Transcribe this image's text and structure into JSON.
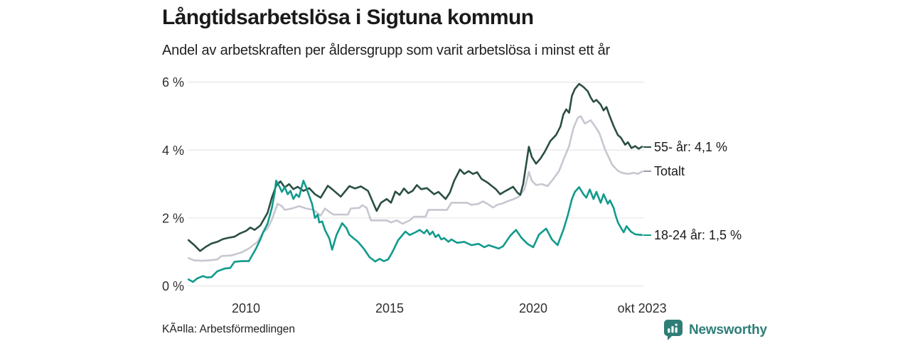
{
  "header": {
    "title": "Långtidsarbetslösa i Sigtuna kommun",
    "subtitle": "Andel av arbetskraften per åldersgrupp som varit arbetslösa i minst ett år"
  },
  "footer": {
    "source": "KÃ¤lla: Arbetsförmedlingen",
    "brand": "Newsworthy",
    "brand_color": "#2e7e77"
  },
  "chart_data": {
    "type": "line",
    "title": "Långtidsarbetslösa i Sigtuna kommun",
    "grid": "horizontal",
    "legend_position": "right-end-labels",
    "x_axis": {
      "range": [
        2008.0,
        2023.83
      ],
      "ticks": [
        {
          "t": 2010,
          "label": "2010"
        },
        {
          "t": 2015,
          "label": "2015"
        },
        {
          "t": 2020,
          "label": "2020"
        },
        {
          "t": 2023.79,
          "label": "okt 2023"
        }
      ]
    },
    "y_axis": {
      "range": [
        0,
        6.3
      ],
      "unit": "%",
      "ticks": [
        {
          "v": 0,
          "label": "0 %"
        },
        {
          "v": 2,
          "label": "2 %"
        },
        {
          "v": 4,
          "label": "4 %"
        },
        {
          "v": 6,
          "label": "6 %"
        }
      ],
      "gridline_color": "#e8e8e8"
    },
    "series": [
      {
        "name": "55- år",
        "end_label": "55- år: 4,1 %",
        "end_value": 4.1,
        "color": "#2a4f42",
        "z": 1,
        "points": [
          [
            2008.0,
            1.35
          ],
          [
            2008.2,
            1.2
          ],
          [
            2008.4,
            1.03
          ],
          [
            2008.6,
            1.15
          ],
          [
            2008.8,
            1.25
          ],
          [
            2009.0,
            1.3
          ],
          [
            2009.2,
            1.38
          ],
          [
            2009.4,
            1.42
          ],
          [
            2009.6,
            1.45
          ],
          [
            2009.8,
            1.55
          ],
          [
            2010.0,
            1.62
          ],
          [
            2010.15,
            1.72
          ],
          [
            2010.3,
            1.65
          ],
          [
            2010.5,
            1.78
          ],
          [
            2010.75,
            2.15
          ],
          [
            2010.9,
            2.6
          ],
          [
            2011.05,
            2.95
          ],
          [
            2011.2,
            3.08
          ],
          [
            2011.35,
            2.9
          ],
          [
            2011.5,
            3.0
          ],
          [
            2011.65,
            2.85
          ],
          [
            2011.8,
            2.92
          ],
          [
            2012.0,
            2.8
          ],
          [
            2012.2,
            2.88
          ],
          [
            2012.4,
            2.7
          ],
          [
            2012.6,
            2.6
          ],
          [
            2012.85,
            2.95
          ],
          [
            2013.0,
            2.85
          ],
          [
            2013.3,
            2.63
          ],
          [
            2013.6,
            2.94
          ],
          [
            2013.8,
            2.87
          ],
          [
            2014.0,
            2.93
          ],
          [
            2014.25,
            2.8
          ],
          [
            2014.4,
            2.5
          ],
          [
            2014.55,
            2.21
          ],
          [
            2014.7,
            2.45
          ],
          [
            2014.9,
            2.56
          ],
          [
            2015.05,
            2.45
          ],
          [
            2015.2,
            2.78
          ],
          [
            2015.35,
            2.68
          ],
          [
            2015.5,
            2.87
          ],
          [
            2015.65,
            2.73
          ],
          [
            2015.8,
            2.8
          ],
          [
            2015.95,
            2.97
          ],
          [
            2016.1,
            2.85
          ],
          [
            2016.3,
            2.88
          ],
          [
            2016.55,
            2.7
          ],
          [
            2016.7,
            2.77
          ],
          [
            2016.95,
            2.56
          ],
          [
            2017.1,
            2.75
          ],
          [
            2017.25,
            3.1
          ],
          [
            2017.45,
            3.43
          ],
          [
            2017.6,
            3.3
          ],
          [
            2017.75,
            3.38
          ],
          [
            2017.9,
            3.3
          ],
          [
            2018.05,
            3.35
          ],
          [
            2018.2,
            3.15
          ],
          [
            2018.4,
            3.05
          ],
          [
            2018.55,
            2.95
          ],
          [
            2018.7,
            2.85
          ],
          [
            2018.85,
            2.7
          ],
          [
            2019.0,
            2.78
          ],
          [
            2019.15,
            2.85
          ],
          [
            2019.3,
            2.92
          ],
          [
            2019.45,
            2.75
          ],
          [
            2019.55,
            2.68
          ],
          [
            2019.65,
            3.0
          ],
          [
            2019.75,
            3.55
          ],
          [
            2019.85,
            4.1
          ],
          [
            2019.95,
            3.8
          ],
          [
            2020.1,
            3.6
          ],
          [
            2020.25,
            3.75
          ],
          [
            2020.4,
            3.95
          ],
          [
            2020.6,
            4.27
          ],
          [
            2020.8,
            4.45
          ],
          [
            2020.95,
            4.7
          ],
          [
            2021.05,
            5.05
          ],
          [
            2021.15,
            5.2
          ],
          [
            2021.25,
            5.1
          ],
          [
            2021.35,
            5.6
          ],
          [
            2021.45,
            5.8
          ],
          [
            2021.6,
            5.95
          ],
          [
            2021.75,
            5.86
          ],
          [
            2021.9,
            5.73
          ],
          [
            2022.0,
            5.55
          ],
          [
            2022.1,
            5.42
          ],
          [
            2022.2,
            5.48
          ],
          [
            2022.35,
            5.34
          ],
          [
            2022.45,
            5.17
          ],
          [
            2022.55,
            5.27
          ],
          [
            2022.65,
            5.03
          ],
          [
            2022.8,
            4.71
          ],
          [
            2022.95,
            4.44
          ],
          [
            2023.05,
            4.37
          ],
          [
            2023.2,
            4.16
          ],
          [
            2023.3,
            4.23
          ],
          [
            2023.42,
            4.06
          ],
          [
            2023.55,
            4.12
          ],
          [
            2023.67,
            4.04
          ],
          [
            2023.79,
            4.1
          ]
        ]
      },
      {
        "name": "Totalt",
        "end_label": "Totalt",
        "end_value": 3.37,
        "color": "#c7c7d1",
        "z": 0,
        "points": [
          [
            2008.0,
            0.82
          ],
          [
            2008.2,
            0.75
          ],
          [
            2008.5,
            0.74
          ],
          [
            2008.8,
            0.76
          ],
          [
            2009.0,
            0.78
          ],
          [
            2009.15,
            0.88
          ],
          [
            2009.5,
            0.9
          ],
          [
            2009.85,
            0.99
          ],
          [
            2010.1,
            1.1
          ],
          [
            2010.4,
            1.3
          ],
          [
            2010.6,
            1.58
          ],
          [
            2010.75,
            1.69
          ],
          [
            2010.9,
            1.95
          ],
          [
            2011.1,
            2.42
          ],
          [
            2011.25,
            2.35
          ],
          [
            2011.35,
            2.24
          ],
          [
            2011.6,
            2.28
          ],
          [
            2011.85,
            2.35
          ],
          [
            2012.1,
            2.28
          ],
          [
            2012.35,
            2.24
          ],
          [
            2012.6,
            2.07
          ],
          [
            2012.75,
            2.28
          ],
          [
            2012.9,
            2.18
          ],
          [
            2013.05,
            2.1
          ],
          [
            2013.55,
            2.1
          ],
          [
            2013.65,
            2.28
          ],
          [
            2013.95,
            2.3
          ],
          [
            2014.05,
            2.38
          ],
          [
            2014.2,
            2.3
          ],
          [
            2014.35,
            1.93
          ],
          [
            2014.9,
            1.93
          ],
          [
            2015.05,
            1.87
          ],
          [
            2015.25,
            1.93
          ],
          [
            2015.45,
            1.83
          ],
          [
            2015.7,
            1.93
          ],
          [
            2015.85,
            2.04
          ],
          [
            2016.25,
            2.04
          ],
          [
            2016.35,
            2.24
          ],
          [
            2017.0,
            2.24
          ],
          [
            2017.15,
            2.45
          ],
          [
            2017.7,
            2.45
          ],
          [
            2017.85,
            2.39
          ],
          [
            2018.1,
            2.42
          ],
          [
            2018.25,
            2.49
          ],
          [
            2018.4,
            2.42
          ],
          [
            2018.6,
            2.31
          ],
          [
            2018.75,
            2.39
          ],
          [
            2018.9,
            2.42
          ],
          [
            2019.1,
            2.49
          ],
          [
            2019.3,
            2.55
          ],
          [
            2019.5,
            2.63
          ],
          [
            2019.7,
            2.85
          ],
          [
            2019.85,
            3.36
          ],
          [
            2019.95,
            3.1
          ],
          [
            2020.1,
            2.97
          ],
          [
            2020.3,
            3.0
          ],
          [
            2020.5,
            2.94
          ],
          [
            2020.7,
            3.15
          ],
          [
            2020.9,
            3.39
          ],
          [
            2021.1,
            3.81
          ],
          [
            2021.25,
            4.12
          ],
          [
            2021.4,
            4.65
          ],
          [
            2021.55,
            4.95
          ],
          [
            2021.65,
            5.0
          ],
          [
            2021.8,
            4.78
          ],
          [
            2022.0,
            4.88
          ],
          [
            2022.15,
            4.7
          ],
          [
            2022.3,
            4.51
          ],
          [
            2022.5,
            4.02
          ],
          [
            2022.75,
            3.57
          ],
          [
            2022.95,
            3.39
          ],
          [
            2023.1,
            3.33
          ],
          [
            2023.3,
            3.3
          ],
          [
            2023.5,
            3.33
          ],
          [
            2023.65,
            3.3
          ],
          [
            2023.79,
            3.37
          ]
        ]
      },
      {
        "name": "18-24 år",
        "end_label": "18-24 år: 1,5 %",
        "end_value": 1.5,
        "color": "#109a8c",
        "z": 2,
        "points": [
          [
            2008.0,
            0.19
          ],
          [
            2008.15,
            0.12
          ],
          [
            2008.3,
            0.22
          ],
          [
            2008.5,
            0.29
          ],
          [
            2008.65,
            0.25
          ],
          [
            2008.8,
            0.26
          ],
          [
            2009.0,
            0.43
          ],
          [
            2009.25,
            0.51
          ],
          [
            2009.45,
            0.53
          ],
          [
            2009.6,
            0.71
          ],
          [
            2009.85,
            0.73
          ],
          [
            2010.1,
            0.73
          ],
          [
            2010.35,
            1.1
          ],
          [
            2010.5,
            1.37
          ],
          [
            2010.6,
            1.58
          ],
          [
            2010.75,
            1.83
          ],
          [
            2010.9,
            2.3
          ],
          [
            2011.0,
            2.75
          ],
          [
            2011.05,
            3.1
          ],
          [
            2011.15,
            2.95
          ],
          [
            2011.25,
            2.77
          ],
          [
            2011.35,
            2.91
          ],
          [
            2011.45,
            2.7
          ],
          [
            2011.55,
            2.8
          ],
          [
            2011.65,
            2.56
          ],
          [
            2011.75,
            2.7
          ],
          [
            2011.85,
            2.62
          ],
          [
            2011.95,
            2.95
          ],
          [
            2012.0,
            3.1
          ],
          [
            2012.1,
            2.9
          ],
          [
            2012.2,
            2.65
          ],
          [
            2012.3,
            2.42
          ],
          [
            2012.4,
            2.0
          ],
          [
            2012.5,
            2.1
          ],
          [
            2012.55,
            1.87
          ],
          [
            2012.65,
            1.9
          ],
          [
            2012.75,
            1.65
          ],
          [
            2012.9,
            1.4
          ],
          [
            2013.0,
            1.07
          ],
          [
            2013.15,
            1.5
          ],
          [
            2013.35,
            1.85
          ],
          [
            2013.5,
            1.7
          ],
          [
            2013.6,
            1.51
          ],
          [
            2013.75,
            1.4
          ],
          [
            2013.9,
            1.3
          ],
          [
            2014.1,
            1.1
          ],
          [
            2014.3,
            0.85
          ],
          [
            2014.5,
            0.72
          ],
          [
            2014.65,
            0.8
          ],
          [
            2014.8,
            0.73
          ],
          [
            2014.95,
            0.78
          ],
          [
            2015.1,
            1.0
          ],
          [
            2015.3,
            1.35
          ],
          [
            2015.55,
            1.6
          ],
          [
            2015.7,
            1.5
          ],
          [
            2015.9,
            1.58
          ],
          [
            2016.05,
            1.65
          ],
          [
            2016.2,
            1.55
          ],
          [
            2016.3,
            1.65
          ],
          [
            2016.4,
            1.51
          ],
          [
            2016.5,
            1.6
          ],
          [
            2016.6,
            1.44
          ],
          [
            2016.7,
            1.51
          ],
          [
            2016.8,
            1.37
          ],
          [
            2016.9,
            1.41
          ],
          [
            2017.05,
            1.3
          ],
          [
            2017.15,
            1.37
          ],
          [
            2017.35,
            1.27
          ],
          [
            2017.6,
            1.3
          ],
          [
            2017.85,
            1.2
          ],
          [
            2018.1,
            1.24
          ],
          [
            2018.3,
            1.14
          ],
          [
            2018.45,
            1.2
          ],
          [
            2018.6,
            1.16
          ],
          [
            2018.8,
            1.1
          ],
          [
            2018.95,
            1.17
          ],
          [
            2019.2,
            1.48
          ],
          [
            2019.4,
            1.65
          ],
          [
            2019.6,
            1.41
          ],
          [
            2019.8,
            1.24
          ],
          [
            2020.0,
            1.14
          ],
          [
            2020.2,
            1.51
          ],
          [
            2020.45,
            1.69
          ],
          [
            2020.65,
            1.37
          ],
          [
            2020.85,
            1.2
          ],
          [
            2021.05,
            1.65
          ],
          [
            2021.2,
            2.07
          ],
          [
            2021.35,
            2.56
          ],
          [
            2021.45,
            2.77
          ],
          [
            2021.6,
            2.91
          ],
          [
            2021.75,
            2.7
          ],
          [
            2021.85,
            2.6
          ],
          [
            2021.97,
            2.84
          ],
          [
            2022.1,
            2.56
          ],
          [
            2022.2,
            2.77
          ],
          [
            2022.35,
            2.45
          ],
          [
            2022.45,
            2.7
          ],
          [
            2022.6,
            2.42
          ],
          [
            2022.67,
            2.52
          ],
          [
            2022.8,
            2.3
          ],
          [
            2022.87,
            2.08
          ],
          [
            2022.95,
            1.87
          ],
          [
            2023.05,
            1.72
          ],
          [
            2023.15,
            1.58
          ],
          [
            2023.25,
            1.76
          ],
          [
            2023.4,
            1.6
          ],
          [
            2023.55,
            1.52
          ],
          [
            2023.79,
            1.5
          ]
        ]
      }
    ]
  }
}
